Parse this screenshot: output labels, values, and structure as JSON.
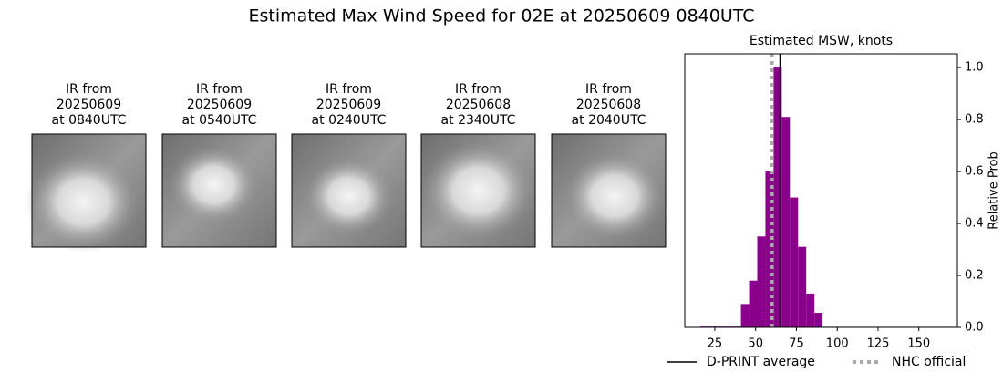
{
  "title": "Estimated Max Wind Speed for 02E at 20250609 0840UTC",
  "panels": [
    {
      "label": [
        "IR from",
        "20250609",
        "at 0840UTC"
      ]
    },
    {
      "label": [
        "IR from",
        "20250609",
        "at 0540UTC"
      ]
    },
    {
      "label": [
        "IR from",
        "20250609",
        "at 0240UTC"
      ]
    },
    {
      "label": [
        "IR from",
        "20250608",
        "at 2340UTC"
      ]
    },
    {
      "label": [
        "IR from",
        "20250608",
        "at 2040UTC"
      ]
    }
  ],
  "chart_data": {
    "type": "histogram",
    "title": "Estimated MSW, knots",
    "y_label": "Relative Prob",
    "color": "#8b008b",
    "bins": [
      16,
      21,
      26,
      31,
      36,
      41,
      46,
      51,
      56,
      61,
      66,
      71,
      76,
      81,
      86,
      91,
      96,
      101,
      106,
      111,
      116,
      121,
      126,
      131,
      136,
      141,
      146,
      151,
      156,
      161,
      166,
      171
    ],
    "values": [
      0.003,
      0.003,
      0.003,
      0.003,
      0.003,
      0.09,
      0.18,
      0.35,
      0.6,
      1.0,
      0.81,
      0.5,
      0.31,
      0.13,
      0.056,
      0.002,
      0.002,
      0.002,
      0.002,
      0.002,
      0.002,
      0.002,
      0.002,
      0.002,
      0.002,
      0.002,
      0.002,
      0.002,
      0.002,
      0.002,
      0.002
    ],
    "lines": [
      {
        "name": "D-PRINT average",
        "value": 65,
        "color": "#000000",
        "style": "solid"
      },
      {
        "name": "NHC official",
        "value": 60,
        "color": "#aaaaaa",
        "style": "dotted"
      }
    ],
    "xlim": [
      6.6,
      173.6
    ],
    "xticks": [
      25,
      50,
      75,
      100,
      125,
      150
    ],
    "ylim": [
      0,
      1.053
    ],
    "yticks": [
      {
        "value": 0,
        "label": "0.0"
      },
      {
        "value": 0.2,
        "label": "0.2"
      },
      {
        "value": 0.4,
        "label": "0.4"
      },
      {
        "value": 0.6,
        "label": "0.6"
      },
      {
        "value": 0.8,
        "label": "0.8"
      },
      {
        "value": 1.0,
        "label": "1.0"
      }
    ],
    "legend": "bottom"
  }
}
